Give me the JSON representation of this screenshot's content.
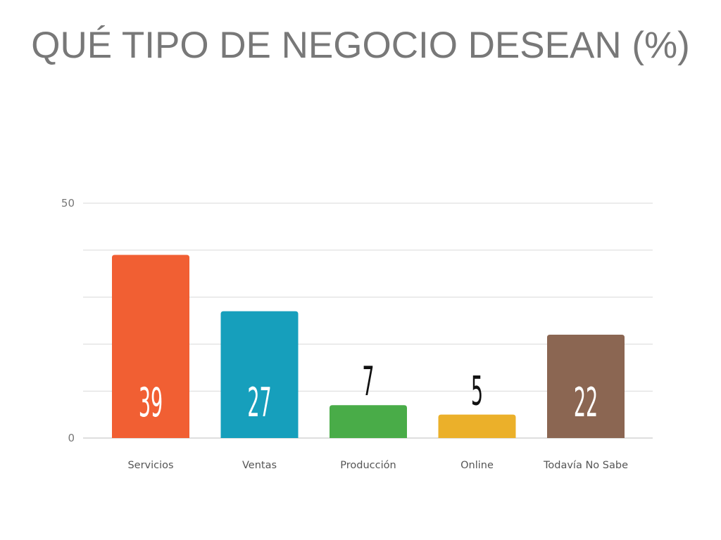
{
  "chart_data": {
    "type": "bar",
    "title": "QUÉ TIPO DE NEGOCIO DESEAN (%)",
    "xlabel": "",
    "ylabel": "",
    "categories": [
      "Servicios",
      "Ventas",
      "Producción",
      "Online",
      "Todavía No Sabe"
    ],
    "values": [
      39,
      27,
      7,
      5,
      22
    ],
    "colors": [
      "#F15F33",
      "#169FBC",
      "#49AC48",
      "#EBB02A",
      "#8B6652"
    ],
    "ylim": [
      0,
      50
    ],
    "y_ticks_labeled": [
      0,
      50
    ],
    "gridlines": [
      0,
      10,
      20,
      30,
      40,
      50
    ],
    "grid": true,
    "data_labels": true
  }
}
